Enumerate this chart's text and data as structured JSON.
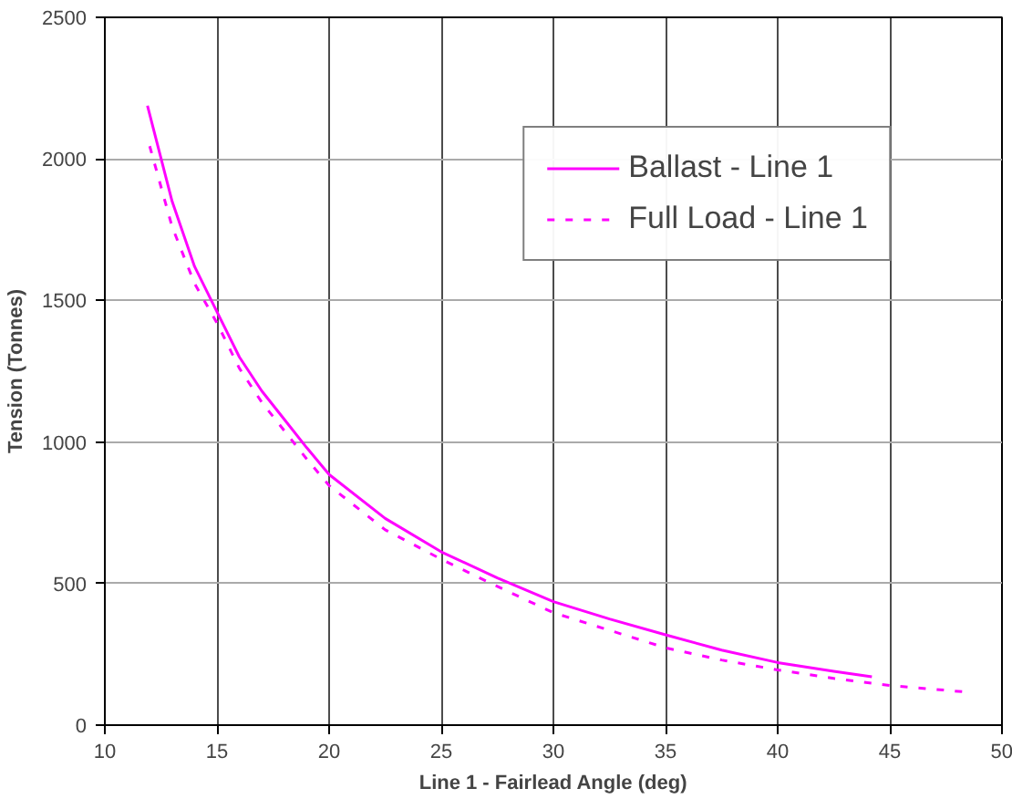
{
  "chart_data": {
    "type": "line",
    "xlabel": "Line 1 - Fairlead Angle (deg)",
    "ylabel": "Tension (Tonnes)",
    "xlim": [
      10,
      50
    ],
    "xticks": [
      10,
      15,
      20,
      25,
      30,
      35,
      40,
      45,
      50
    ],
    "ylim": [
      0,
      2500
    ],
    "yticks": [
      0,
      500,
      1000,
      1500,
      2000,
      2500
    ],
    "grid": true,
    "legend": "top right",
    "marker": "none",
    "series": [
      {
        "name": "Ballast - Line 1",
        "color": "#ff00ff",
        "line_style": "solid",
        "x": [
          11.9,
          13,
          14,
          15,
          16,
          17,
          18,
          19,
          20,
          22.5,
          25,
          27.5,
          30,
          32.5,
          35,
          37.5,
          40,
          42.5,
          44.2
        ],
        "values": [
          2188,
          1850,
          1620,
          1460,
          1300,
          1180,
          1080,
          980,
          885,
          730,
          612,
          520,
          436,
          375,
          319,
          265,
          221,
          190,
          171
        ]
      },
      {
        "name": "Full Load - Line 1",
        "color": "#ff00ff",
        "line_style": "dashed",
        "x": [
          12,
          13,
          14,
          15,
          16,
          17,
          18,
          19,
          20,
          22.5,
          25,
          27.5,
          30,
          32.5,
          35,
          37.5,
          40,
          42.5,
          45,
          48.4
        ],
        "values": [
          2045,
          1760,
          1560,
          1420,
          1260,
          1140,
          1040,
          940,
          846,
          690,
          586,
          490,
          397,
          335,
          273,
          230,
          195,
          165,
          140,
          117
        ]
      }
    ]
  }
}
